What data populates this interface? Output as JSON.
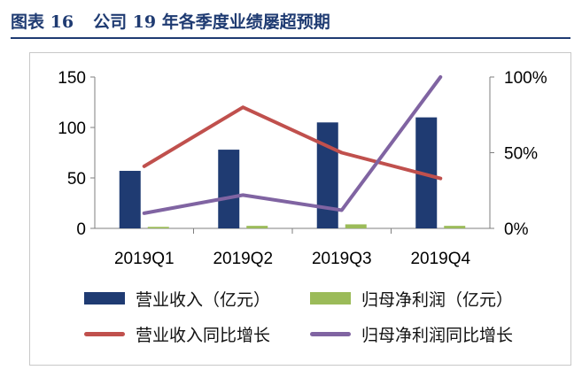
{
  "figure": {
    "label": "图表 16",
    "title": "公司 19 年各季度业绩屡超预期"
  },
  "chart_data": {
    "type": "bar",
    "categories": [
      "2019Q1",
      "2019Q2",
      "2019Q3",
      "2019Q4"
    ],
    "series": [
      {
        "name": "营业收入（亿元）",
        "type": "bar",
        "axis": "left",
        "color": "#1f3b72",
        "values": [
          57,
          78,
          105,
          110
        ]
      },
      {
        "name": "归母净利润（亿元）",
        "type": "bar",
        "axis": "left",
        "color": "#9bbb59",
        "values": [
          1.5,
          2.5,
          4.0,
          2.5
        ]
      },
      {
        "name": "营业收入同比增长",
        "type": "line",
        "axis": "right",
        "color": "#c0504d",
        "values": [
          0.41,
          0.8,
          0.5,
          0.33
        ]
      },
      {
        "name": "归母净利润同比增长",
        "type": "line",
        "axis": "right",
        "color": "#8064a2",
        "values": [
          0.1,
          0.22,
          0.12,
          1.0
        ]
      }
    ],
    "y_left": {
      "min": 0,
      "max": 150,
      "ticks": [
        "0",
        "50",
        "100",
        "150"
      ]
    },
    "y_right": {
      "min": 0,
      "max": 1,
      "ticks": [
        "0%",
        "50%",
        "100%"
      ]
    },
    "grid": false,
    "legend_position": "bottom"
  },
  "legend": {
    "items": [
      {
        "label": "营业收入（亿元）",
        "kind": "bar",
        "color": "#1f3b72"
      },
      {
        "label": "归母净利润（亿元）",
        "kind": "bar",
        "color": "#9bbb59"
      },
      {
        "label": "营业收入同比增长",
        "kind": "line",
        "color": "#c0504d"
      },
      {
        "label": "归母净利润同比增长",
        "kind": "line",
        "color": "#8064a2"
      }
    ]
  }
}
